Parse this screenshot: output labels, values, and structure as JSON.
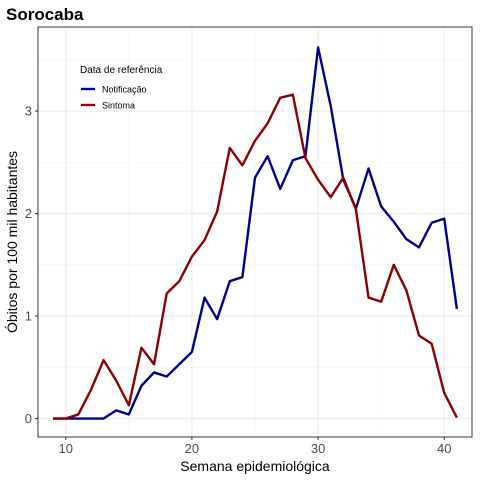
{
  "chart_data": {
    "type": "line",
    "title": "Sorocaba",
    "xlabel": "Semana epidemiológica",
    "ylabel": "Óbitos por 100 mil habitantes",
    "xlim": [
      7.8,
      42.2
    ],
    "ylim": [
      -0.18,
      3.82
    ],
    "x_ticks": [
      10,
      20,
      30,
      40
    ],
    "y_ticks": [
      0,
      1,
      2,
      3
    ],
    "grid": true,
    "legend": {
      "title": "Data de referência",
      "position": "top-left",
      "entries": [
        {
          "name": "Notificação",
          "color": "#00008b"
        },
        {
          "name": "Sintoma",
          "color": "#8b0000"
        }
      ]
    },
    "series": [
      {
        "name": "Notificação",
        "color": "#00008b",
        "x": [
          9,
          10,
          11,
          12,
          13,
          14,
          15,
          16,
          17,
          18,
          19,
          20,
          21,
          22,
          23,
          24,
          25,
          26,
          27,
          28,
          29,
          30,
          31,
          32,
          33,
          34,
          35,
          36,
          37,
          38,
          39,
          40,
          41
        ],
        "y": [
          0,
          0,
          0,
          0,
          0,
          0.08,
          0.04,
          0.32,
          0.45,
          0.41,
          0.53,
          0.65,
          1.18,
          0.97,
          1.34,
          1.38,
          2.35,
          2.56,
          2.24,
          2.52,
          2.56,
          3.62,
          3.05,
          2.33,
          2.05,
          2.44,
          2.07,
          1.92,
          1.75,
          1.67,
          1.91,
          1.95,
          1.07
        ]
      },
      {
        "name": "Sintoma",
        "color": "#8b0000",
        "x": [
          9,
          10,
          11,
          12,
          13,
          14,
          15,
          16,
          17,
          18,
          19,
          20,
          21,
          22,
          23,
          24,
          25,
          26,
          27,
          28,
          29,
          30,
          31,
          32,
          33,
          34,
          35,
          36,
          37,
          38,
          39,
          40,
          41
        ],
        "y": [
          0,
          0,
          0.04,
          0.28,
          0.57,
          0.37,
          0.13,
          0.69,
          0.53,
          1.22,
          1.34,
          1.58,
          1.74,
          2.02,
          2.64,
          2.47,
          2.71,
          2.88,
          3.13,
          3.16,
          2.54,
          2.33,
          2.16,
          2.35,
          2.04,
          1.18,
          1.14,
          1.5,
          1.25,
          0.81,
          0.73,
          0.25,
          0.01
        ]
      }
    ]
  }
}
